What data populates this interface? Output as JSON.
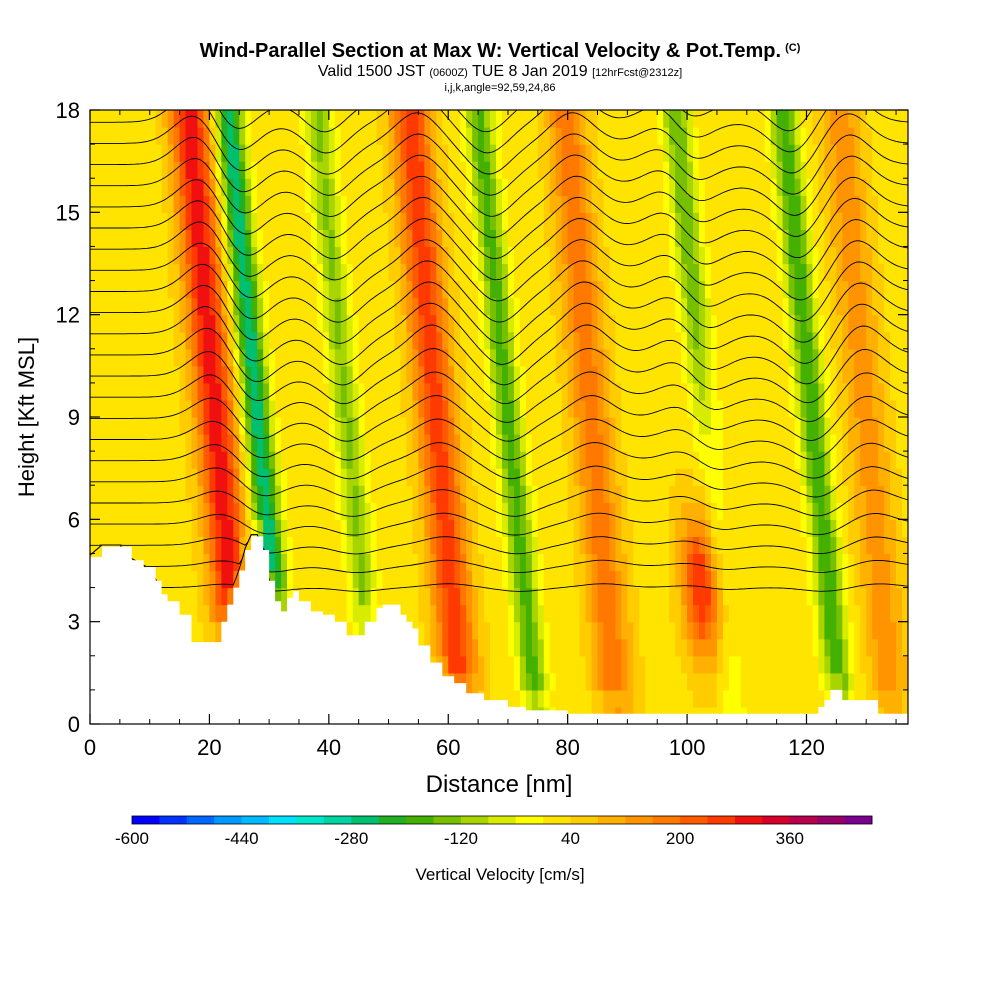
{
  "title": {
    "main": "Wind-Parallel Section at Max W: Vertical Velocity & Pot.Temp.",
    "tag": "(C)",
    "valid": "Valid 1500 JST",
    "valid_z": "(0600Z)",
    "valid_date": "TUE 8 Jan 2019",
    "fcst": "[12hrFcst@2312z]",
    "ijk": "i,j,k,angle=92,59,24,86"
  },
  "chart_data": {
    "type": "heatmap",
    "xlabel": "Distance [nm]",
    "ylabel": "Height [Kft MSL]",
    "xlim": [
      0,
      137
    ],
    "ylim": [
      0,
      18
    ],
    "x_ticks": [
      "0",
      "20",
      "40",
      "60",
      "80",
      "100",
      "120"
    ],
    "y_ticks": [
      "0",
      "3",
      "6",
      "9",
      "12",
      "15",
      "18"
    ],
    "colorbar": {
      "label": "Vertical Velocity [cm/s]",
      "range": [
        -600,
        480
      ],
      "tick_labels": [
        "-600",
        "-440",
        "-280",
        "-120",
        "40",
        "200",
        "360"
      ],
      "colors": [
        "#0000ff",
        "#0033ff",
        "#0066ff",
        "#0099ff",
        "#00bbff",
        "#00e0ff",
        "#00e6cc",
        "#00d4a0",
        "#00c070",
        "#22b022",
        "#44b000",
        "#77c000",
        "#a8d400",
        "#d8ec00",
        "#ffff00",
        "#ffe400",
        "#ffcc00",
        "#ffb000",
        "#ff9400",
        "#ff7800",
        "#ff5a00",
        "#ff3a00",
        "#f01010",
        "#d8002a",
        "#b8004c",
        "#980068",
        "#7a0090"
      ]
    },
    "waves": [
      {
        "x_center": 28,
        "vertical_velocity": -300,
        "type": "downdraft"
      },
      {
        "x_center": 21,
        "vertical_velocity": 280,
        "type": "updraft"
      },
      {
        "x_center": 43,
        "vertical_velocity": -150,
        "type": "downdraft"
      },
      {
        "x_center": 58,
        "vertical_velocity": 240,
        "type": "updraft"
      },
      {
        "x_center": 70,
        "vertical_velocity": -200,
        "type": "downdraft"
      },
      {
        "x_center": 84,
        "vertical_velocity": 160,
        "type": "updraft"
      },
      {
        "x_center": 103,
        "vertical_velocity": -180,
        "type": "downdraft"
      },
      {
        "x_center": 100,
        "vertical_velocity": 260,
        "type": "updraft"
      },
      {
        "x_center": 121,
        "vertical_velocity": -220,
        "type": "downdraft"
      },
      {
        "x_center": 130,
        "vertical_velocity": 120,
        "type": "updraft"
      }
    ],
    "terrain": {
      "x": [
        0,
        2,
        5,
        7,
        9,
        11,
        12,
        13,
        15,
        17,
        21,
        22,
        23,
        24,
        25,
        26,
        27,
        28,
        29,
        30,
        31,
        32,
        33,
        34,
        35,
        37,
        39,
        41,
        43,
        45,
        46,
        48,
        49,
        50,
        51,
        52,
        53,
        54,
        55,
        57,
        59,
        61,
        63,
        66,
        70,
        73,
        80,
        88,
        95,
        100,
        105,
        110,
        115,
        118,
        121,
        122,
        123,
        124,
        125,
        126,
        128,
        130,
        132,
        134,
        137
      ],
      "height_kft": [
        4.9,
        5.2,
        5.2,
        4.8,
        4.6,
        4.2,
        3.8,
        3.6,
        3.2,
        2.4,
        2.4,
        3.0,
        3.5,
        4.0,
        4.5,
        5.1,
        5.5,
        5.5,
        5.1,
        4.2,
        3.6,
        3.3,
        3.7,
        3.9,
        3.6,
        3.3,
        3.2,
        3.0,
        2.6,
        2.6,
        3.0,
        3.4,
        3.5,
        3.5,
        3.5,
        3.2,
        3.0,
        2.8,
        2.3,
        1.8,
        1.4,
        1.2,
        0.9,
        0.7,
        0.5,
        0.4,
        0.3,
        0.3,
        0.3,
        0.3,
        0.3,
        0.3,
        0.3,
        0.3,
        0.3,
        0.5,
        0.7,
        1.0,
        1.0,
        0.7,
        0.7,
        0.7,
        0.3,
        0.3,
        0.3
      ]
    }
  }
}
